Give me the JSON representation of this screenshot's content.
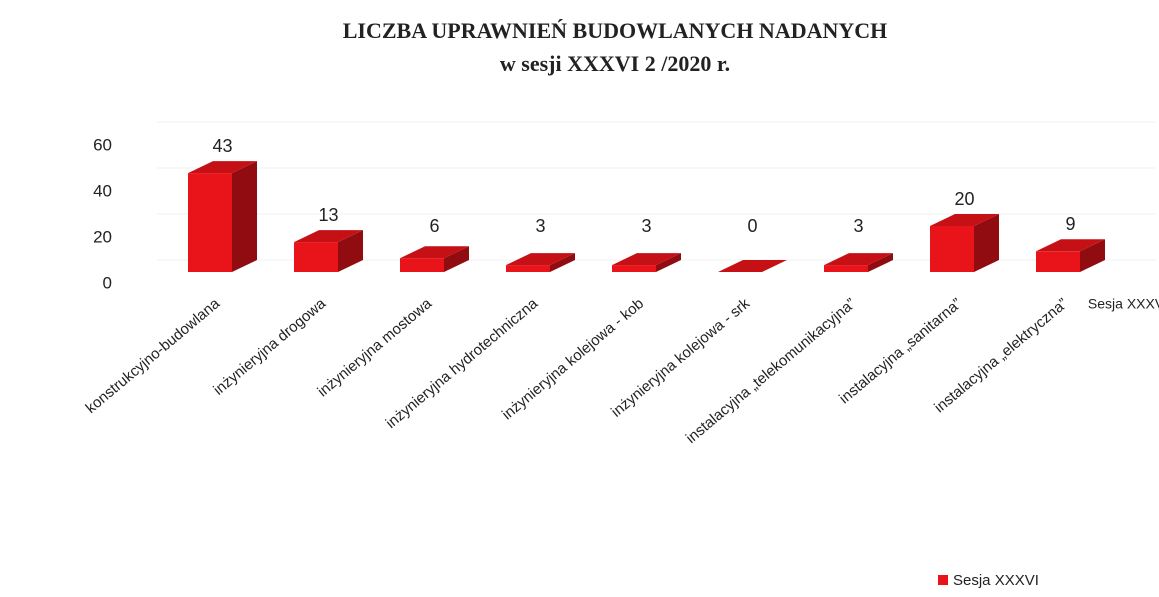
{
  "chart_data": {
    "type": "bar3d",
    "title": "LICZBA UPRAWNIEŃ BUDOWLANYCH NADANYCH",
    "subtitle": "w sesji XXXVI 2 /2020 r.",
    "categories": [
      "konstrukcyjno-budowlana",
      "inżynieryjna drogowa",
      "inżynieryjna mostowa",
      "inżynieryjna hydrotechniczna",
      "inżynieryjna kolejowa - kob",
      "inżynieryjna kolejowa - srk",
      "instalacyjna „telekomunikacyjna”",
      "instalacyjna „sanitarna”",
      "instalacyjna „elektryczna”"
    ],
    "series": [
      {
        "name": "Sesja XXXVI",
        "color": "#e8141a",
        "values": [
          43,
          13,
          6,
          3,
          3,
          0,
          3,
          20,
          9
        ]
      }
    ],
    "ylim": [
      0,
      60
    ],
    "yticks": [
      0,
      20,
      40,
      60
    ],
    "grid": true,
    "legend": "bottom-right"
  }
}
